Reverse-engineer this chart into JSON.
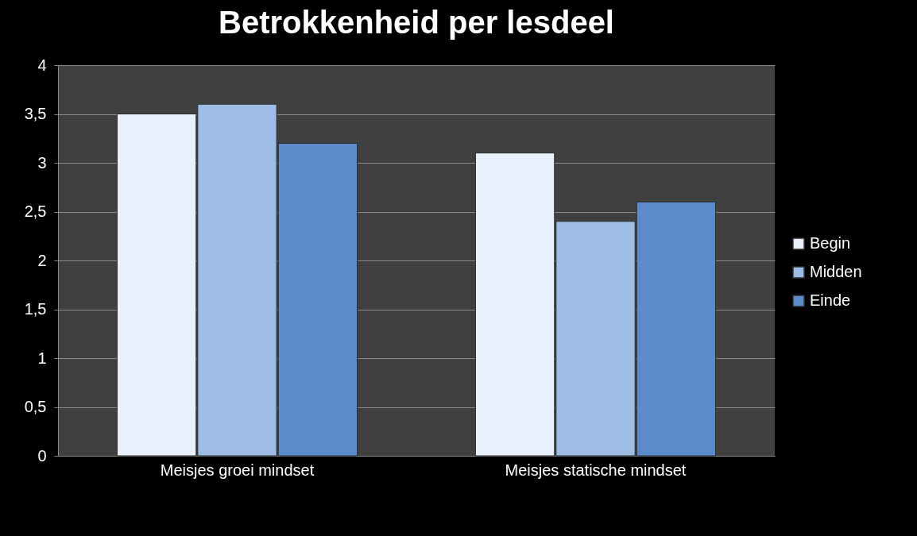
{
  "chart_data": {
    "type": "bar",
    "title": "Betrokkenheid per lesdeel",
    "categories": [
      "Meisjes groei mindset",
      "Meisjes statische mindset"
    ],
    "series": [
      {
        "name": "Begin",
        "color": "#e8f0fb",
        "values": [
          3.5,
          3.1
        ]
      },
      {
        "name": "Midden",
        "color": "#9dbde6",
        "values": [
          3.6,
          2.4
        ]
      },
      {
        "name": "Einde",
        "color": "#5b8bcb",
        "values": [
          3.2,
          2.6
        ]
      }
    ],
    "ylim": [
      0,
      4
    ],
    "yticks": [
      0,
      {
        "value": 0.5,
        "label": "0,5"
      },
      1,
      {
        "value": 1.5,
        "label": "1,5"
      },
      2,
      {
        "value": 2.5,
        "label": "2,5"
      },
      3,
      {
        "value": 3.5,
        "label": "3,5"
      },
      4
    ],
    "grid": "y",
    "legend": "right"
  }
}
